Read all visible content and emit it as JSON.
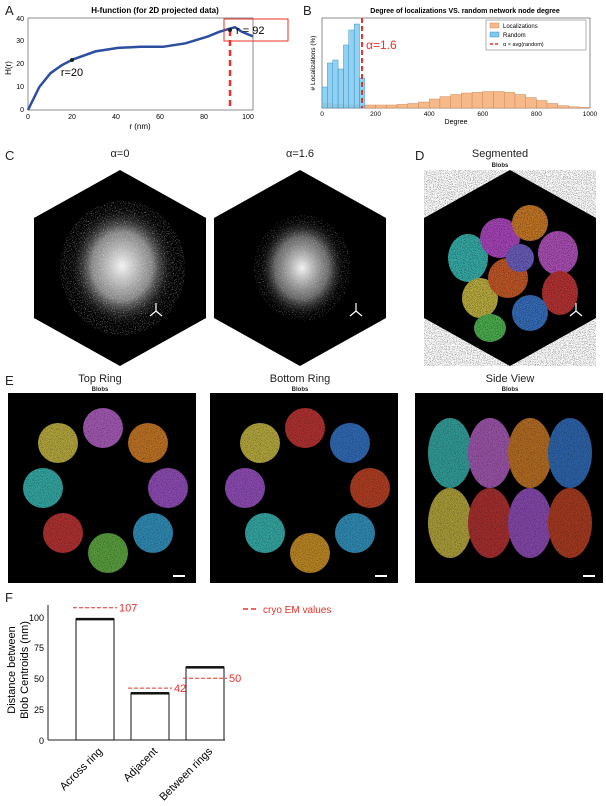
{
  "letters": [
    "A",
    "B",
    "C",
    "D",
    "E",
    "F"
  ],
  "panelA": {
    "title": "H-function (for 2D projected data)",
    "ylabel": "H(r)",
    "xlabel": "r (nm)",
    "annot_r20": "r=20",
    "annot_r92": "r = 92",
    "xticks": [
      "0",
      "20",
      "40",
      "60",
      "80",
      "100"
    ],
    "yticks": [
      "0",
      "10",
      "20",
      "30",
      "40"
    ]
  },
  "panelB": {
    "title": "Degree of localizations VS. random network node degree",
    "ylabel": "# Localizations (%)",
    "xlabel": "Degree",
    "alpha_label": "α=1.6",
    "legend": [
      "Localizations",
      "Random",
      "α × avg(random)"
    ],
    "xticks": [
      "0",
      "200",
      "400",
      "600",
      "800",
      "1000"
    ]
  },
  "panelC": {
    "titles": [
      "α=0",
      "α=1.6"
    ]
  },
  "panelD": {
    "title": "Segmented",
    "sub": "Blobs"
  },
  "panelE": {
    "titles": [
      "Top Ring",
      "Bottom Ring",
      "Side View"
    ],
    "sub": "Blobs"
  },
  "panelF": {
    "ylabel1": "Distance between",
    "ylabel2": "Blob Centroids (nm)",
    "legend": "cryo EM values",
    "yticks": [
      "0",
      "25",
      "50",
      "75",
      "100"
    ]
  },
  "chart_data": [
    {
      "type": "line",
      "title": "H-function (for 2D projected data)",
      "xlabel": "r (nm)",
      "ylabel": "H(r)",
      "xlim": [
        0,
        100
      ],
      "ylim": [
        0,
        40
      ],
      "x": [
        0,
        5,
        10,
        15,
        20,
        30,
        40,
        50,
        60,
        70,
        80,
        85,
        90,
        92,
        95,
        100
      ],
      "y": [
        0,
        10,
        16,
        19.5,
        22,
        25.5,
        27,
        27.5,
        27.5,
        29,
        32,
        34,
        35.5,
        36,
        34,
        32
      ]
    },
    {
      "type": "bar",
      "title": "Degree of localizations VS. random network node degree",
      "xlabel": "Degree",
      "ylabel": "# Localizations (%)",
      "xlim": [
        0,
        1000
      ],
      "series": [
        {
          "name": "Localizations",
          "x": [
            0,
            40,
            80,
            120,
            160,
            200,
            240,
            280,
            320,
            360,
            400,
            440,
            480,
            520,
            560,
            600,
            640,
            680,
            720,
            760,
            800,
            840,
            880,
            920,
            960
          ],
          "values": [
            0.15,
            0.12,
            0.1,
            0.1,
            0.1,
            0.1,
            0.1,
            0.12,
            0.15,
            0.2,
            0.3,
            0.38,
            0.45,
            0.5,
            0.52,
            0.55,
            0.55,
            0.52,
            0.45,
            0.35,
            0.25,
            0.15,
            0.08,
            0.04,
            0.02
          ]
        },
        {
          "name": "Random",
          "x": [
            0,
            20,
            40,
            60,
            80,
            100,
            120,
            140
          ],
          "values": [
            0.7,
            1.5,
            1.6,
            1.3,
            2.1,
            2.6,
            2.8,
            1.0
          ]
        }
      ],
      "vline": 150
    },
    {
      "type": "bar",
      "categories": [
        "Across ring",
        "Adjacent",
        "Between rings"
      ],
      "values": [
        98,
        38,
        59
      ],
      "reference": [
        107,
        42,
        50
      ],
      "ylabel": "Distance between Blob Centroids (nm)",
      "ylim": [
        0,
        110
      ]
    }
  ]
}
